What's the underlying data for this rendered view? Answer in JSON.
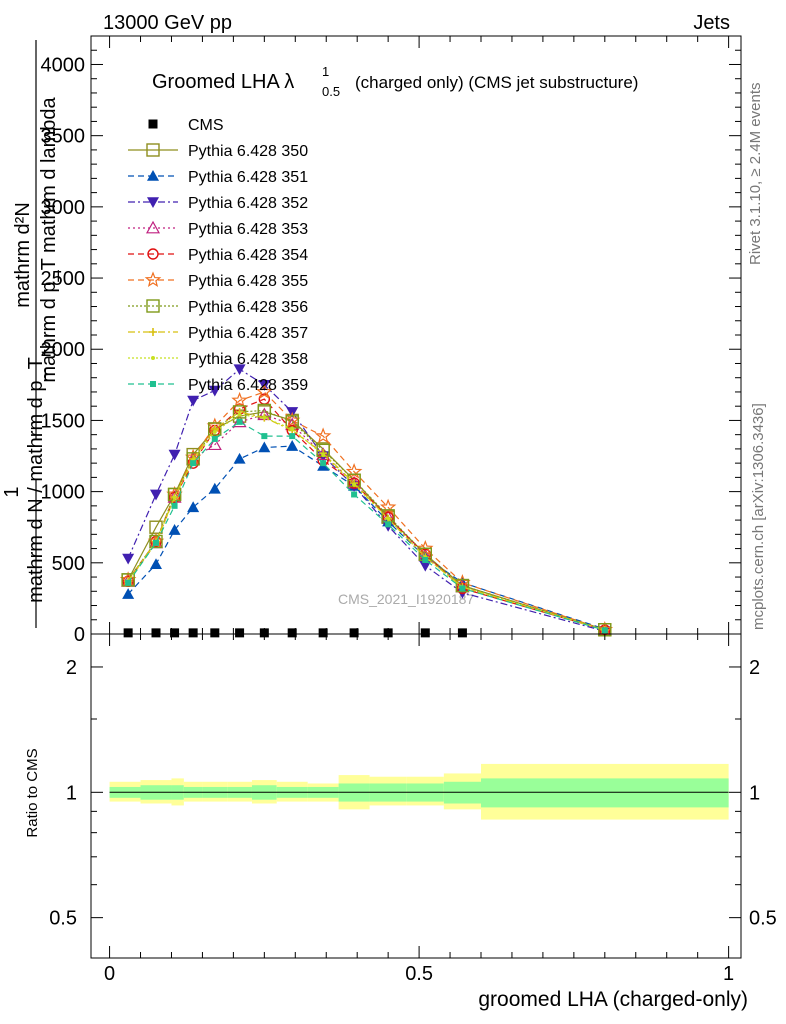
{
  "header": {
    "left": "13000 GeV pp",
    "right": "Jets"
  },
  "side_text": {
    "rivet": "Rivet 3.1.10, ≥ 2.4M events",
    "mcplots": "mcplots.cern.ch [arXiv:1306.3436]"
  },
  "watermark": "CMS_2021_I1920187",
  "chart_data": [
    {
      "type": "line",
      "panel": "main",
      "title": "Groomed LHA",
      "title_symbol": "λ",
      "title_sup": "1",
      "title_sub": "0.5",
      "title_suffix": "(charged only) (CMS jet substructure)",
      "ylabel_num": "mathrm dN",
      "ylabel_den": "mathrm d p_T mathrm d lambda",
      "ylabel_prefix_num": "1",
      "ylabel_prefix_den": "mathrm d N / mathrm d p_T",
      "ylabel_lines": {
        "top_line1": "mathrm d²N",
        "top_line2": "mathrm d p_T mathrm d lambda",
        "bottom_line1": "1",
        "bottom_line2": "mathrm d N / mathrm d p_T"
      },
      "xlim": [
        -0.03,
        1.02
      ],
      "ylim": [
        0,
        4200
      ],
      "yticks": [
        0,
        500,
        1000,
        1500,
        2000,
        2500,
        3000,
        3500,
        4000
      ],
      "ytick_labels": [
        "0",
        "500",
        "1000",
        "1500",
        "2000",
        "2500",
        "3000",
        "3500",
        "4000"
      ],
      "x": [
        0.03,
        0.075,
        0.105,
        0.135,
        0.17,
        0.21,
        0.25,
        0.295,
        0.345,
        0.395,
        0.45,
        0.51,
        0.57,
        0.8
      ],
      "series": [
        {
          "name": "CMS",
          "color": "#000000",
          "marker": "square-filled",
          "dash": "none",
          "values": [
            8,
            8,
            8,
            8,
            8,
            8,
            8,
            8,
            8,
            8,
            8,
            8,
            8,
            null
          ]
        },
        {
          "name": "Pythia 6.428 350",
          "color": "#8f8f1f",
          "marker": "square-open",
          "dash": "solid",
          "values": [
            380,
            750,
            980,
            1260,
            1440,
            1530,
            1560,
            1500,
            1300,
            1080,
            820,
            560,
            340,
            30
          ]
        },
        {
          "name": "Pythia 6.428 351",
          "color": "#0050b4",
          "marker": "triangle-up-filled",
          "dash": "6,4",
          "values": [
            280,
            490,
            730,
            890,
            1020,
            1230,
            1310,
            1320,
            1180,
            1040,
            790,
            540,
            360,
            35
          ]
        },
        {
          "name": "Pythia 6.428 352",
          "color": "#4020b0",
          "marker": "triangle-down-filled",
          "dash": "7,3,2,3",
          "values": [
            530,
            980,
            1260,
            1640,
            1710,
            1860,
            1750,
            1560,
            1250,
            1040,
            760,
            480,
            290,
            20
          ]
        },
        {
          "name": "Pythia 6.428 353",
          "color": "#c02080",
          "marker": "triangle-up-open",
          "dash": "2,3",
          "values": [
            370,
            640,
            960,
            1230,
            1330,
            1490,
            1540,
            1470,
            1260,
            1060,
            820,
            550,
            330,
            28
          ]
        },
        {
          "name": "Pythia 6.428 354",
          "color": "#e01010",
          "marker": "circle-open",
          "dash": "6,4",
          "values": [
            370,
            650,
            960,
            1200,
            1430,
            1580,
            1650,
            1430,
            1220,
            1060,
            820,
            560,
            320,
            28
          ]
        },
        {
          "name": "Pythia 6.428 355",
          "color": "#f07020",
          "marker": "star-open",
          "dash": "6,4",
          "values": [
            380,
            650,
            980,
            1240,
            1460,
            1640,
            1700,
            1500,
            1390,
            1140,
            890,
            600,
            360,
            30
          ]
        },
        {
          "name": "Pythia 6.428 356",
          "color": "#7f9a1a",
          "marker": "square-open",
          "dash": "2,2",
          "values": [
            380,
            650,
            980,
            1230,
            1440,
            1560,
            1570,
            1490,
            1290,
            1080,
            830,
            560,
            340,
            30
          ]
        },
        {
          "name": "Pythia 6.428 357",
          "color": "#d8c010",
          "marker": "cross",
          "dash": "7,3,2,3",
          "values": [
            370,
            650,
            960,
            1230,
            1440,
            1560,
            1520,
            1430,
            1270,
            1060,
            810,
            540,
            330,
            28
          ]
        },
        {
          "name": "Pythia 6.428 358",
          "color": "#c8e020",
          "marker": "dot",
          "dash": "2,2",
          "values": [
            370,
            640,
            960,
            1220,
            1420,
            1540,
            1520,
            1440,
            1260,
            1050,
            810,
            540,
            330,
            28
          ]
        },
        {
          "name": "Pythia 6.428 359",
          "color": "#20c090",
          "marker": "square-filled-small",
          "dash": "6,4",
          "values": [
            360,
            640,
            900,
            1200,
            1370,
            1490,
            1390,
            1390,
            1200,
            980,
            770,
            520,
            320,
            26
          ]
        }
      ]
    },
    {
      "type": "area",
      "panel": "ratio",
      "ylabel": "Ratio to CMS",
      "xlabel": "groomed LHA (charged-only)",
      "xlim": [
        -0.03,
        1.02
      ],
      "ylog": true,
      "ylim": [
        0.4,
        2.4
      ],
      "yticks": [
        0.5,
        1,
        2
      ],
      "ytick_labels": [
        "0.5",
        "1",
        "2"
      ],
      "xticks": [
        0,
        0.5,
        1
      ],
      "xtick_labels": [
        "0",
        "0.5",
        "1"
      ],
      "bin_edges": [
        0,
        0.05,
        0.1,
        0.12,
        0.15,
        0.19,
        0.23,
        0.27,
        0.32,
        0.37,
        0.42,
        0.48,
        0.54,
        0.6,
        1.0
      ],
      "band_inner_up": [
        1.03,
        1.04,
        1.04,
        1.03,
        1.03,
        1.03,
        1.04,
        1.03,
        1.03,
        1.05,
        1.05,
        1.05,
        1.06,
        1.08
      ],
      "band_inner_down": [
        0.97,
        0.96,
        0.96,
        0.97,
        0.97,
        0.97,
        0.96,
        0.97,
        0.97,
        0.95,
        0.95,
        0.95,
        0.94,
        0.92
      ],
      "band_outer_up": [
        1.06,
        1.07,
        1.08,
        1.06,
        1.06,
        1.06,
        1.07,
        1.06,
        1.05,
        1.1,
        1.09,
        1.09,
        1.11,
        1.17
      ],
      "band_outer_down": [
        0.95,
        0.94,
        0.93,
        0.95,
        0.95,
        0.95,
        0.94,
        0.95,
        0.95,
        0.91,
        0.93,
        0.93,
        0.91,
        0.86
      ],
      "inner_color": "#99ff99",
      "outer_color": "#ffff99",
      "reference": 1
    }
  ]
}
